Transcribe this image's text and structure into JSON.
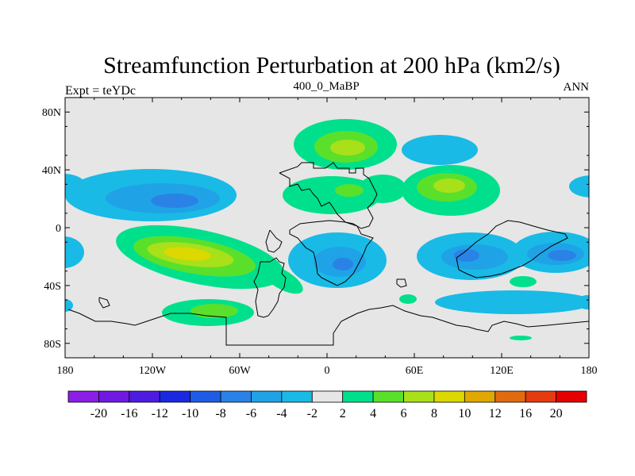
{
  "plot": {
    "title": "Streamfunction Perturbation at 200 hPa (km2/s)",
    "left_label": "Expt = teYDc",
    "center_label": "400_0_MaBP",
    "right_label": "ANN"
  },
  "chart_data": {
    "type": "filled-contour-map",
    "projection": "cylindrical-equidistant",
    "variable": "Streamfunction perturbation",
    "level": "200 hPa",
    "units": "km2/s",
    "lon_range": [
      -180,
      180
    ],
    "lat_range": [
      -90,
      90
    ],
    "x_ticks": [
      {
        "value": -180,
        "label": "180"
      },
      {
        "value": -120,
        "label": "120W"
      },
      {
        "value": -60,
        "label": "60W"
      },
      {
        "value": 0,
        "label": "0"
      },
      {
        "value": 60,
        "label": "60E"
      },
      {
        "value": 120,
        "label": "120E"
      },
      {
        "value": 180,
        "label": "180"
      }
    ],
    "y_ticks": [
      {
        "value": 80,
        "label": "80N"
      },
      {
        "value": 40,
        "label": "40N"
      },
      {
        "value": 0,
        "label": "0"
      },
      {
        "value": -40,
        "label": "40S"
      },
      {
        "value": -80,
        "label": "80S"
      }
    ],
    "colorbar": {
      "boundaries": [
        "-20",
        "-16",
        "-12",
        "-10",
        "-8",
        "-6",
        "-4",
        "-2",
        "2",
        "4",
        "6",
        "8",
        "10",
        "12",
        "16",
        "20"
      ],
      "colors": [
        "#8c1fe6",
        "#6f19e3",
        "#4d1ce0",
        "#1a29e0",
        "#1f5ce6",
        "#2a82e6",
        "#1fa3e6",
        "#19bae6",
        "#e6e6e6",
        "#00e08c",
        "#5ae02a",
        "#a8e01a",
        "#dcd800",
        "#e0a800",
        "#e06a10",
        "#e63a10",
        "#e60000"
      ]
    },
    "anomalies": [
      {
        "sign": "negative",
        "center_lon": -105,
        "center_lat": 22,
        "peak_level": "-8"
      },
      {
        "sign": "positive",
        "center_lon": -92,
        "center_lat": -20,
        "peak_level": "10"
      },
      {
        "sign": "positive",
        "center_lon": -78,
        "center_lat": -60,
        "peak_level": "6"
      },
      {
        "sign": "positive",
        "center_lon": 18,
        "center_lat": 52,
        "peak_level": "6"
      },
      {
        "sign": "positive",
        "center_lon": 15,
        "center_lat": 25,
        "peak_level": "6"
      },
      {
        "sign": "positive",
        "center_lon": 90,
        "center_lat": 28,
        "peak_level": "8"
      },
      {
        "sign": "negative",
        "center_lon": 70,
        "center_lat": 52,
        "peak_level": "-4"
      },
      {
        "sign": "negative",
        "center_lon": 10,
        "center_lat": -25,
        "peak_level": "-8"
      },
      {
        "sign": "negative",
        "center_lon": 105,
        "center_lat": -22,
        "peak_level": "-8"
      },
      {
        "sign": "negative",
        "center_lon": 160,
        "center_lat": -20,
        "peak_level": "-8"
      },
      {
        "sign": "negative",
        "center_lon": 130,
        "center_lat": -55,
        "peak_level": "-4"
      },
      {
        "sign": "negative",
        "center_lon": -178,
        "center_lat": 28,
        "peak_level": "-4"
      },
      {
        "sign": "negative",
        "center_lon": 178,
        "center_lat": 27,
        "peak_level": "-4"
      },
      {
        "sign": "negative",
        "center_lon": -178,
        "center_lat": -18,
        "peak_level": "-4"
      },
      {
        "sign": "positive",
        "center_lon": 135,
        "center_lat": -38,
        "peak_level": "4"
      },
      {
        "sign": "positive",
        "center_lon": 57,
        "center_lat": -50,
        "peak_level": "4"
      },
      {
        "sign": "positive",
        "center_lon": 134,
        "center_lat": -77,
        "peak_level": "2"
      },
      {
        "sign": "negative",
        "center_lon": -178,
        "center_lat": -53,
        "peak_level": "-2"
      }
    ]
  }
}
